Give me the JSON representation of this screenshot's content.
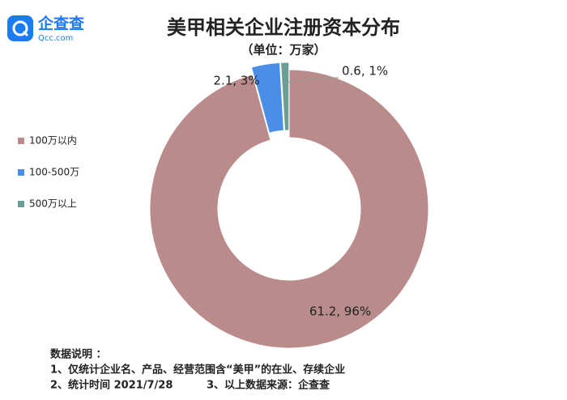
{
  "logo": {
    "name": "企查查",
    "site": "Qcc.com"
  },
  "chart_data": {
    "type": "donut",
    "title": "美甲相关企业注册资本分布",
    "subtitle": "（单位：万家）",
    "categories": [
      "100万以内",
      "100-500万",
      "500万以上"
    ],
    "series": [
      {
        "name": "注册资本",
        "values": [
          61.2,
          2.1,
          0.6
        ],
        "value_labels": [
          "61.2, 96%",
          "2.1, 3%",
          "0.6, 1%"
        ],
        "colors": [
          "#b98b8b",
          "#4a8ee8",
          "#6a9e94"
        ]
      }
    ],
    "legend": "left"
  },
  "notes": {
    "heading": "数据说明 ：",
    "lines": [
      "1、仅统计企业名、产品、经营范围含“美甲”的在业、存续企业",
      "2、统计时间  2021/7/28",
      "3、以上数据来源：企查查"
    ]
  }
}
